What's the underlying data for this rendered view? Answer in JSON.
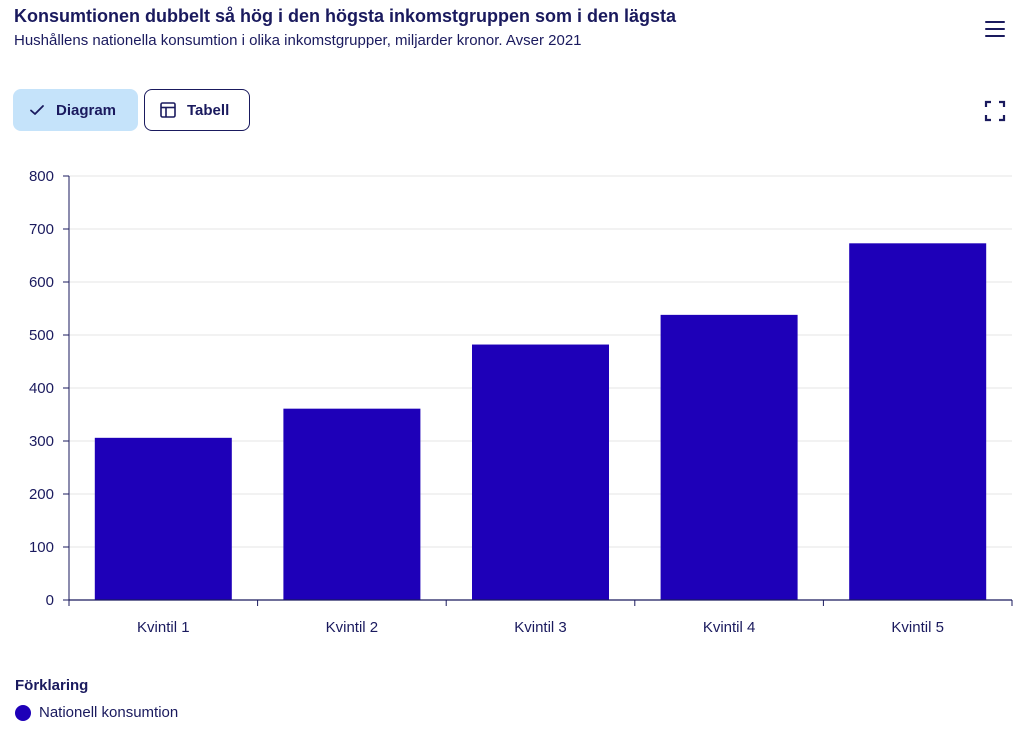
{
  "header": {
    "title": "Konsumtionen dubbelt så hög i den högsta inkomstgruppen som i den lägsta",
    "subtitle": "Hushållens nationella konsumtion i olika inkomstgrupper, miljarder kronor. Avser 2021",
    "menu_icon": "hamburger-menu-icon",
    "expand_icon": "fullscreen-icon"
  },
  "tabs": [
    {
      "label": "Diagram",
      "icon": "checkmark-icon",
      "active": true
    },
    {
      "label": "Tabell",
      "icon": "table-icon",
      "active": false
    }
  ],
  "legend": {
    "title": "Förklaring",
    "items": [
      {
        "label": "Nationell konsumtion",
        "color": "#1e00b8"
      }
    ]
  },
  "colors": {
    "bar": "#1e00b8",
    "text": "#1a1a5e",
    "active_tab": "#c5e3fa",
    "grid": "#e6e6e6"
  },
  "chart_data": {
    "type": "bar",
    "title": "Konsumtionen dubbelt så hög i den högsta inkomstgruppen som i den lägsta",
    "subtitle": "Hushållens nationella konsumtion i olika inkomstgrupper, miljarder kronor. Avser 2021",
    "xlabel": "",
    "ylabel": "",
    "categories": [
      "Kvintil 1",
      "Kvintil 2",
      "Kvintil 3",
      "Kvintil 4",
      "Kvintil 5"
    ],
    "series": [
      {
        "name": "Nationell konsumtion",
        "values": [
          306,
          361,
          482,
          538,
          673
        ]
      }
    ],
    "ylim": [
      0,
      800
    ],
    "yticks": [
      0,
      100,
      200,
      300,
      400,
      500,
      600,
      700,
      800
    ],
    "grid": true,
    "legend_position": "bottom-left"
  }
}
